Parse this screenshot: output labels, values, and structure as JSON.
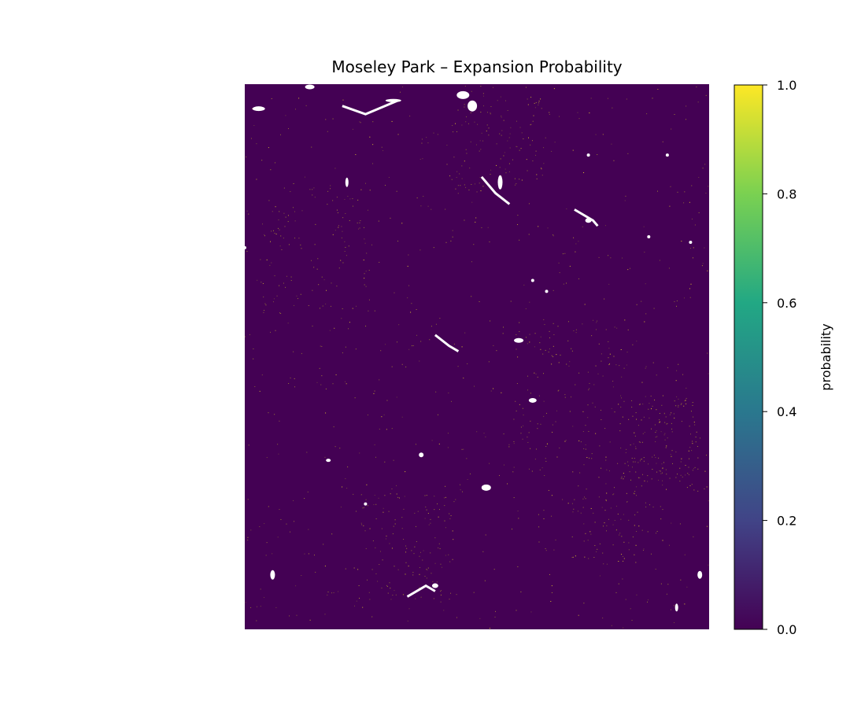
{
  "chart_data": {
    "type": "heatmap",
    "title": "Moseley Park – Expansion Probability",
    "colorbar": {
      "label": "probability",
      "colormap": "viridis",
      "range": [
        0.0,
        1.0
      ],
      "ticks": [
        "0.0",
        "0.2",
        "0.4",
        "0.6",
        "0.8",
        "1.0"
      ],
      "tick_values": [
        0.0,
        0.2,
        0.4,
        0.6,
        0.8,
        1.0
      ],
      "colors": [
        "#440154",
        "#414487",
        "#2a788e",
        "#22a884",
        "#7ad151",
        "#fde725"
      ]
    },
    "background_value": 0.0,
    "background_color": "#440154",
    "high_value_color": "#fde725",
    "nodata_color": "#ffffff",
    "axes_visible": false
  }
}
